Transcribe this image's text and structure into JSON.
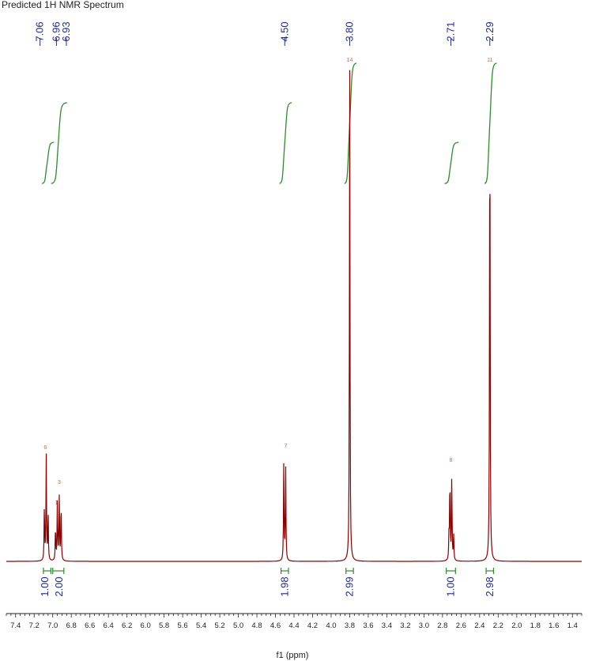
{
  "title": "Predicted 1H NMR Spectrum",
  "colors": {
    "spectrum": "#8b0000",
    "integral_curve": "#2e8b2e",
    "peak_labels": "#1f2a8c",
    "integral_bracket": "#2e8b2e",
    "axis": "#222222",
    "atom_labels": "#cc6655"
  },
  "chart_data": {
    "type": "line",
    "title": "Predicted 1H NMR Spectrum",
    "xlabel": "f1 (ppm)",
    "ylabel": "",
    "x_reversed": true,
    "xlim": [
      7.5,
      1.3
    ],
    "x_ticks": [
      7.4,
      7.2,
      7.0,
      6.8,
      6.6,
      6.4,
      6.2,
      6.0,
      5.8,
      5.6,
      5.4,
      5.2,
      5.0,
      4.8,
      4.6,
      4.4,
      4.2,
      4.0,
      3.8,
      3.6,
      3.4,
      3.2,
      3.0,
      2.8,
      2.6,
      2.4,
      2.2,
      2.0,
      1.8,
      1.6,
      1.4
    ],
    "x_tick_labels": [
      "7.4",
      "7.2",
      "7.0",
      "6.8",
      "6.6",
      "6.4",
      "6.2",
      "6.0",
      "5.8",
      "5.6",
      "5.4",
      "5.2",
      "5.0",
      "4.8",
      "4.6",
      "4.4",
      "4.2",
      "4.0",
      "3.8",
      "3.6",
      "3.4",
      "3.2",
      "3.0",
      "2.8",
      "2.6",
      "2.4",
      "2.2",
      "2.0",
      "1.8",
      "1.6",
      "1.4"
    ],
    "peak_labels": [
      {
        "ppm": 7.06,
        "text": "7.06"
      },
      {
        "ppm": 6.96,
        "text": "6.96"
      },
      {
        "ppm": 6.93,
        "text": "6.93"
      },
      {
        "ppm": 4.5,
        "text": "4.50"
      },
      {
        "ppm": 3.8,
        "text": "3.80"
      },
      {
        "ppm": 2.71,
        "text": "2.71"
      },
      {
        "ppm": 2.29,
        "text": "2.29"
      }
    ],
    "integrals": [
      {
        "from": 7.1,
        "to": 7.02,
        "value": "1.00"
      },
      {
        "from": 7.0,
        "to": 6.88,
        "value": "2.00"
      },
      {
        "from": 4.54,
        "to": 4.46,
        "value": "1.98"
      },
      {
        "from": 3.84,
        "to": 3.76,
        "value": "2.99"
      },
      {
        "from": 2.76,
        "to": 2.66,
        "value": "1.00"
      },
      {
        "from": 2.33,
        "to": 2.25,
        "value": "2.98"
      }
    ],
    "atom_labels": [
      {
        "ppm": 7.08,
        "text": "6"
      },
      {
        "ppm": 6.93,
        "text": "3"
      },
      {
        "ppm": 6.96,
        "text": "1"
      },
      {
        "ppm": 4.49,
        "text": "7"
      },
      {
        "ppm": 3.8,
        "text": "14"
      },
      {
        "ppm": 2.71,
        "text": "8"
      },
      {
        "ppm": 2.29,
        "text": "11"
      }
    ],
    "series": [
      {
        "peaks": [
          {
            "ppm": 7.09,
            "height": 0.11
          },
          {
            "ppm": 7.07,
            "height": 0.21
          },
          {
            "ppm": 7.05,
            "height": 0.1
          },
          {
            "ppm": 6.97,
            "height": 0.07
          },
          {
            "ppm": 6.95,
            "height": 0.12
          },
          {
            "ppm": 6.93,
            "height": 0.13
          },
          {
            "ppm": 6.91,
            "height": 0.12
          },
          {
            "ppm": 4.51,
            "height": 0.2
          },
          {
            "ppm": 4.49,
            "height": 0.19
          },
          {
            "ppm": 3.8,
            "height": 1.0
          },
          {
            "ppm": 2.73,
            "height": 0.05
          },
          {
            "ppm": 2.72,
            "height": 0.17
          },
          {
            "ppm": 2.7,
            "height": 0.17
          },
          {
            "ppm": 2.68,
            "height": 0.05
          },
          {
            "ppm": 2.29,
            "height": 1.0
          }
        ]
      }
    ]
  }
}
